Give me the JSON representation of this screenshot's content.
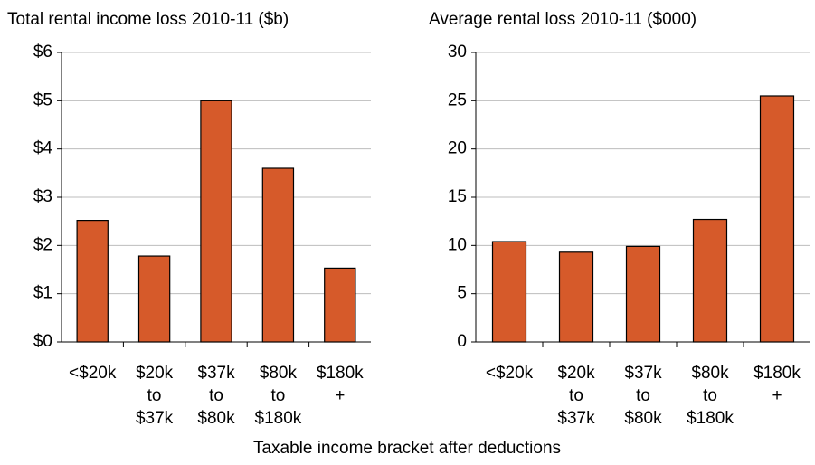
{
  "chart_data": [
    {
      "type": "bar",
      "title": "Total rental income loss 2010-11 ($b)",
      "categories": [
        "<$20k",
        "$20k to $37k",
        "$37k to $80k",
        "$80k to $180k",
        "$180k +"
      ],
      "values": [
        2.52,
        1.78,
        5.0,
        3.6,
        1.53
      ],
      "color": "#d65a2a",
      "ylim": [
        0,
        6
      ],
      "yticks": [
        {
          "value": 0,
          "label": "$0"
        },
        {
          "value": 1,
          "label": "$1"
        },
        {
          "value": 2,
          "label": "$2"
        },
        {
          "value": 3,
          "label": "$3"
        },
        {
          "value": 4,
          "label": "$4"
        },
        {
          "value": 5,
          "label": "$5"
        },
        {
          "value": 6,
          "label": "$6"
        }
      ],
      "grid": true
    },
    {
      "type": "bar",
      "title": "Average rental loss 2010-11 ($000)",
      "categories": [
        "<$20k",
        "$20k to $37k",
        "$37k to $80k",
        "$80k to $180k",
        "$180k +"
      ],
      "values": [
        10.4,
        9.3,
        9.9,
        12.7,
        25.5
      ],
      "color": "#d65a2a",
      "ylim": [
        0,
        30
      ],
      "yticks": [
        0,
        5,
        10,
        15,
        20,
        25,
        30
      ],
      "grid": true
    }
  ],
  "xlabel": "Taxable income bracket after deductions"
}
